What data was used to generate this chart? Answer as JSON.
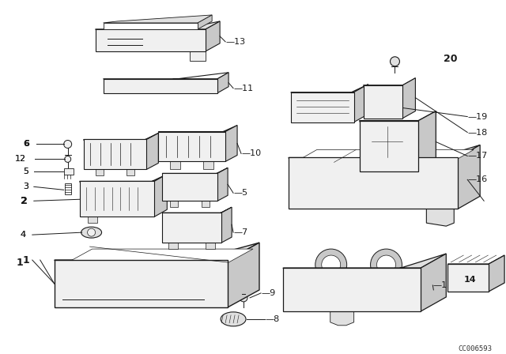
{
  "bg_color": "#ffffff",
  "line_color": "#1a1a1a",
  "watermark": "CC006593",
  "face_light": "#f0f0f0",
  "face_mid": "#e0e0e0",
  "face_dark": "#c8c8c8",
  "face_white": "#ffffff"
}
